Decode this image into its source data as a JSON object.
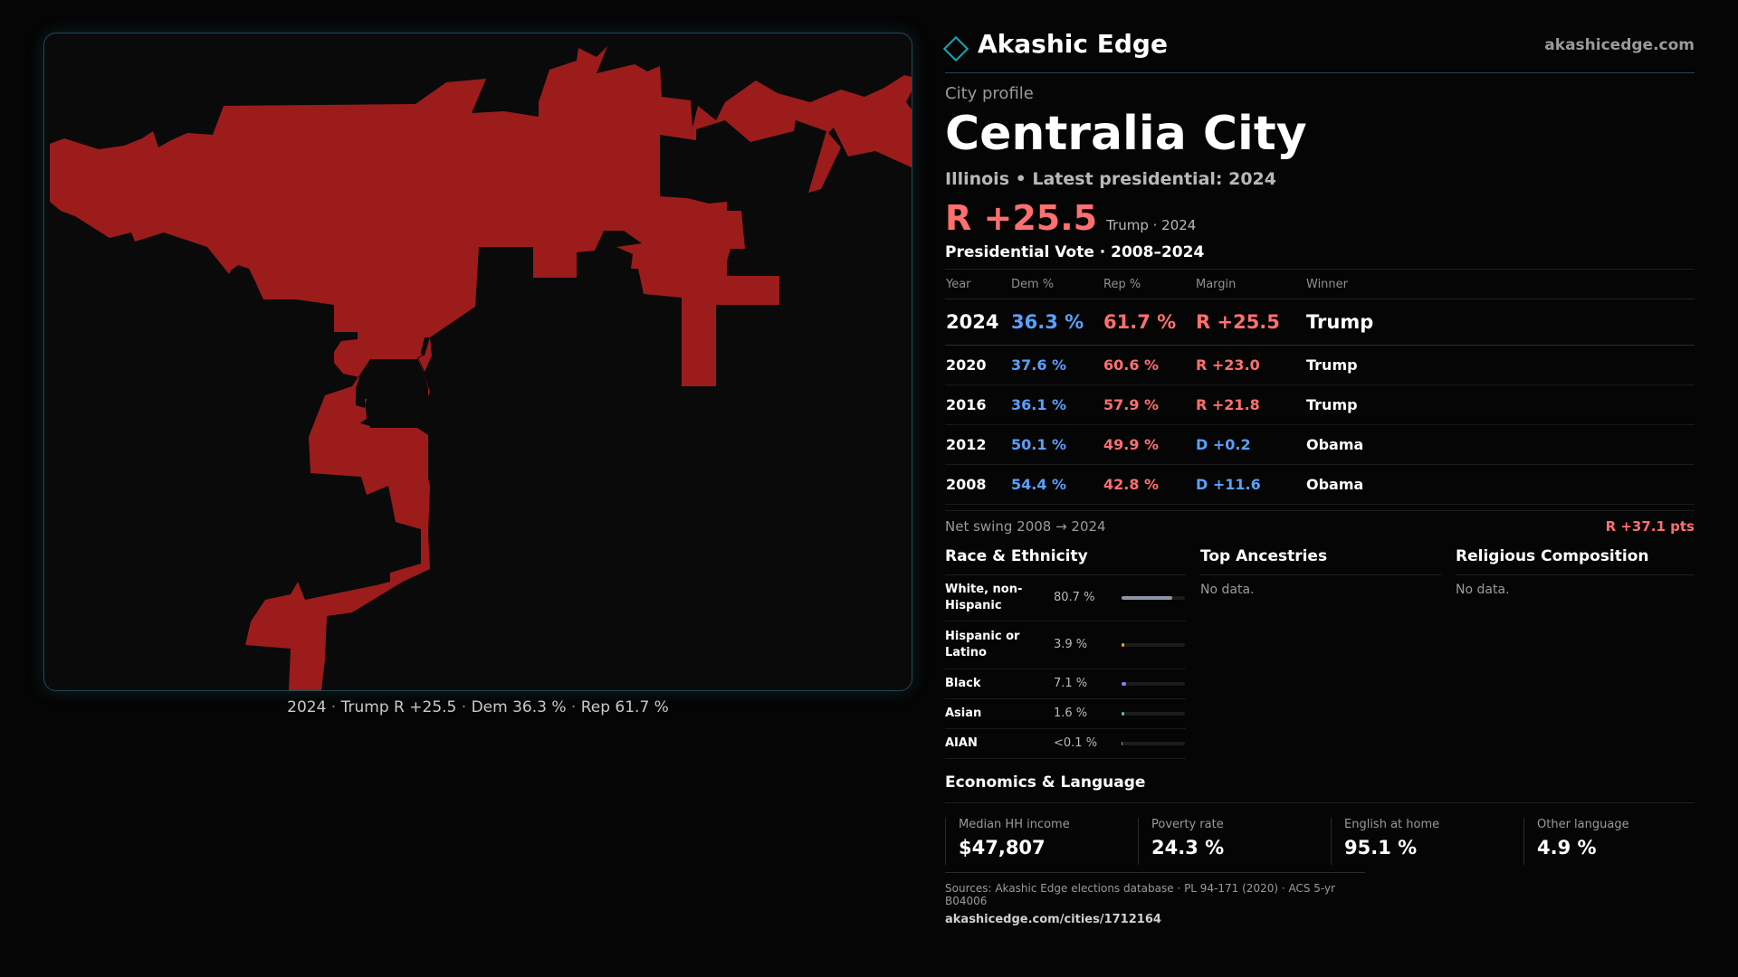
{
  "brand": {
    "name": "Akashic Edge",
    "url": "akashicedge.com"
  },
  "profile": {
    "label": "City profile",
    "city": "Centralia City",
    "subline": "Illinois • Latest presidential: 2024",
    "headline_margin": "R +25.5",
    "headline_note": "Trump · 2024"
  },
  "map": {
    "fill_color": "#9c1c1c",
    "caption": {
      "year": "2024",
      "winner": "Trump",
      "margin": "R +25.5",
      "dem": "Dem 36.3 %",
      "rep": "Rep 61.7 %"
    }
  },
  "votes": {
    "title": "Presidential Vote · 2008–2024",
    "headers": {
      "year": "Year",
      "dem": "Dem %",
      "rep": "Rep %",
      "margin": "Margin",
      "winner": "Winner"
    },
    "rows": [
      {
        "year": "2024",
        "dem": "36.3 %",
        "rep": "61.7 %",
        "margin": "R +25.5",
        "party": "R",
        "winner": "Trump"
      },
      {
        "year": "2020",
        "dem": "37.6 %",
        "rep": "60.6 %",
        "margin": "R +23.0",
        "party": "R",
        "winner": "Trump"
      },
      {
        "year": "2016",
        "dem": "36.1 %",
        "rep": "57.9 %",
        "margin": "R +21.8",
        "party": "R",
        "winner": "Trump"
      },
      {
        "year": "2012",
        "dem": "50.1 %",
        "rep": "49.9 %",
        "margin": "D +0.2",
        "party": "D",
        "winner": "Obama"
      },
      {
        "year": "2008",
        "dem": "54.4 %",
        "rep": "42.8 %",
        "margin": "D +11.6",
        "party": "D",
        "winner": "Obama"
      }
    ],
    "swing_label": "Net swing 2008 → 2024",
    "swing_value": "R +37.1 pts"
  },
  "race": {
    "title": "Race & Ethnicity",
    "rows": [
      {
        "label": "White, non-Hispanic",
        "value": "80.7 %",
        "pct": 80.7,
        "color": "#8d95a5"
      },
      {
        "label": "Hispanic or Latino",
        "value": "3.9 %",
        "pct": 3.9,
        "color": "#e0a030"
      },
      {
        "label": "Black",
        "value": "7.1 %",
        "pct": 7.1,
        "color": "#8f7bff"
      },
      {
        "label": "Asian",
        "value": "1.6 %",
        "pct": 1.6,
        "color": "#5fc0a0"
      },
      {
        "label": "AIAN",
        "value": "<0.1 %",
        "pct": 0.05,
        "color": "#cc8844"
      }
    ]
  },
  "ancestries": {
    "title": "Top Ancestries",
    "empty": "No data."
  },
  "religion": {
    "title": "Religious Composition",
    "empty": "No data."
  },
  "economics": {
    "title": "Economics & Language",
    "cells": [
      {
        "label": "Median HH income",
        "value": "$47,807"
      },
      {
        "label": "Poverty rate",
        "value": "24.3 %"
      },
      {
        "label": "English at home",
        "value": "95.1 %"
      },
      {
        "label": "Other language",
        "value": "4.9 %"
      }
    ]
  },
  "sources": {
    "line1": "Sources: Akashic Edge elections database · PL 94-171 (2020) · ACS 5-yr B04006",
    "line2": "akashicedge.com/cities/1712164"
  }
}
